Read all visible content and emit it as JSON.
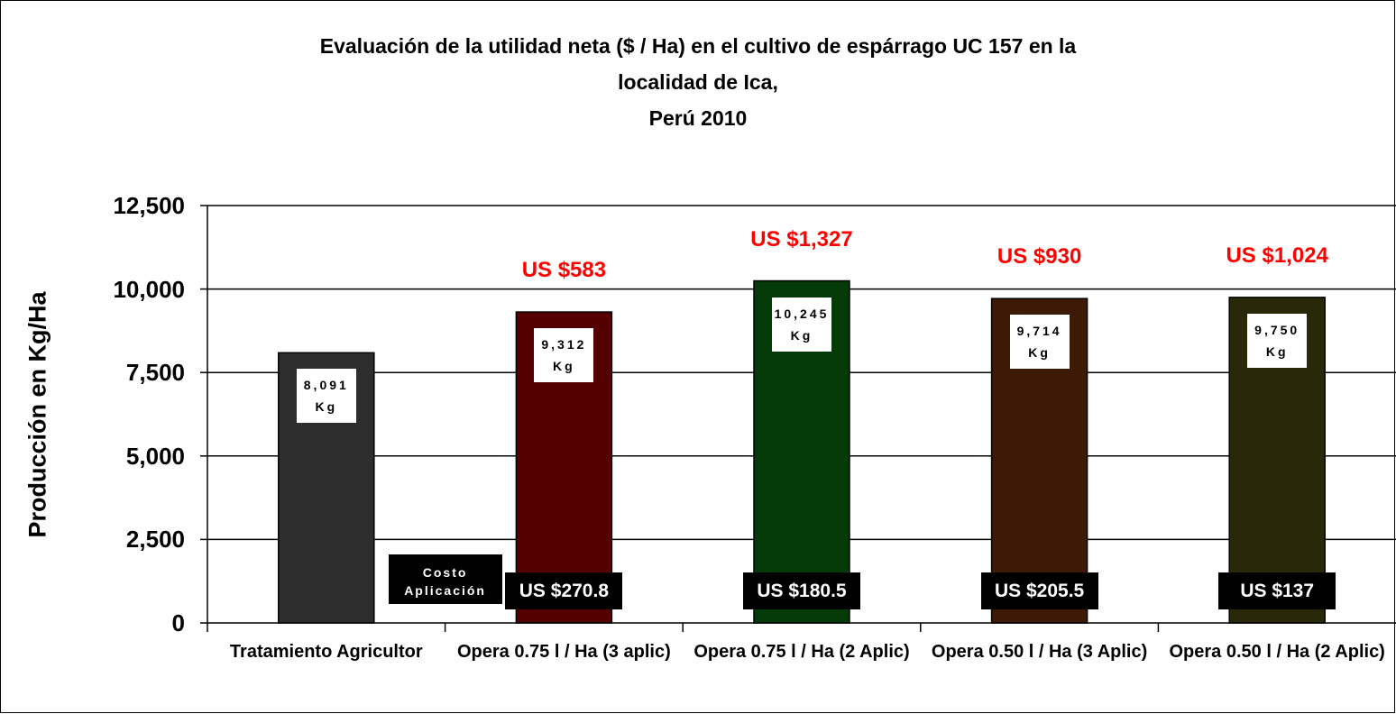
{
  "chart_data": {
    "type": "bar",
    "title": [
      "Evaluación de la utilidad neta ($ / Ha) en el cultivo de espárrago UC 157 en la",
      "localidad de Ica,",
      "Perú 2010"
    ],
    "y_axis_label": "Producción en Kg/Ha",
    "categories": [
      "Tratamiento Agricultor",
      "Opera 0.75 l / Ha (3 aplic)",
      "Opera 0.75 l / Ha (2 Aplic)",
      "Opera 0.50 l / Ha (3 Aplic)",
      "Opera 0.50 l / Ha (2 Aplic)"
    ],
    "values": [
      8091,
      9312,
      10245,
      9714,
      9750
    ],
    "value_labels": [
      "8,091 Kg",
      "9,312 Kg",
      "10,245 Kg",
      "9,714 Kg",
      "9,750 Kg"
    ],
    "colors": [
      "#2e2e2e",
      "#550000",
      "#043a08",
      "#3d1a06",
      "#29290a"
    ],
    "net_profit_labels": [
      null,
      "US $583",
      "US $1,327",
      "US $930",
      "US $1,024"
    ],
    "cost_labels": [
      null,
      "US $270.8",
      "US $180.5",
      "US $205.5",
      "US $137"
    ],
    "cost_title": "Costo Aplicación",
    "ylim": [
      0,
      12500
    ],
    "yticks": [
      0,
      {
        "value": 2500,
        "label": "2,500"
      },
      {
        "value": 5000,
        "label": "5,000"
      },
      {
        "value": 7500,
        "label": "7,500"
      },
      {
        "value": 10000,
        "label": "10,000"
      },
      {
        "value": 12500,
        "label": "12,500"
      }
    ],
    "grid": true
  }
}
